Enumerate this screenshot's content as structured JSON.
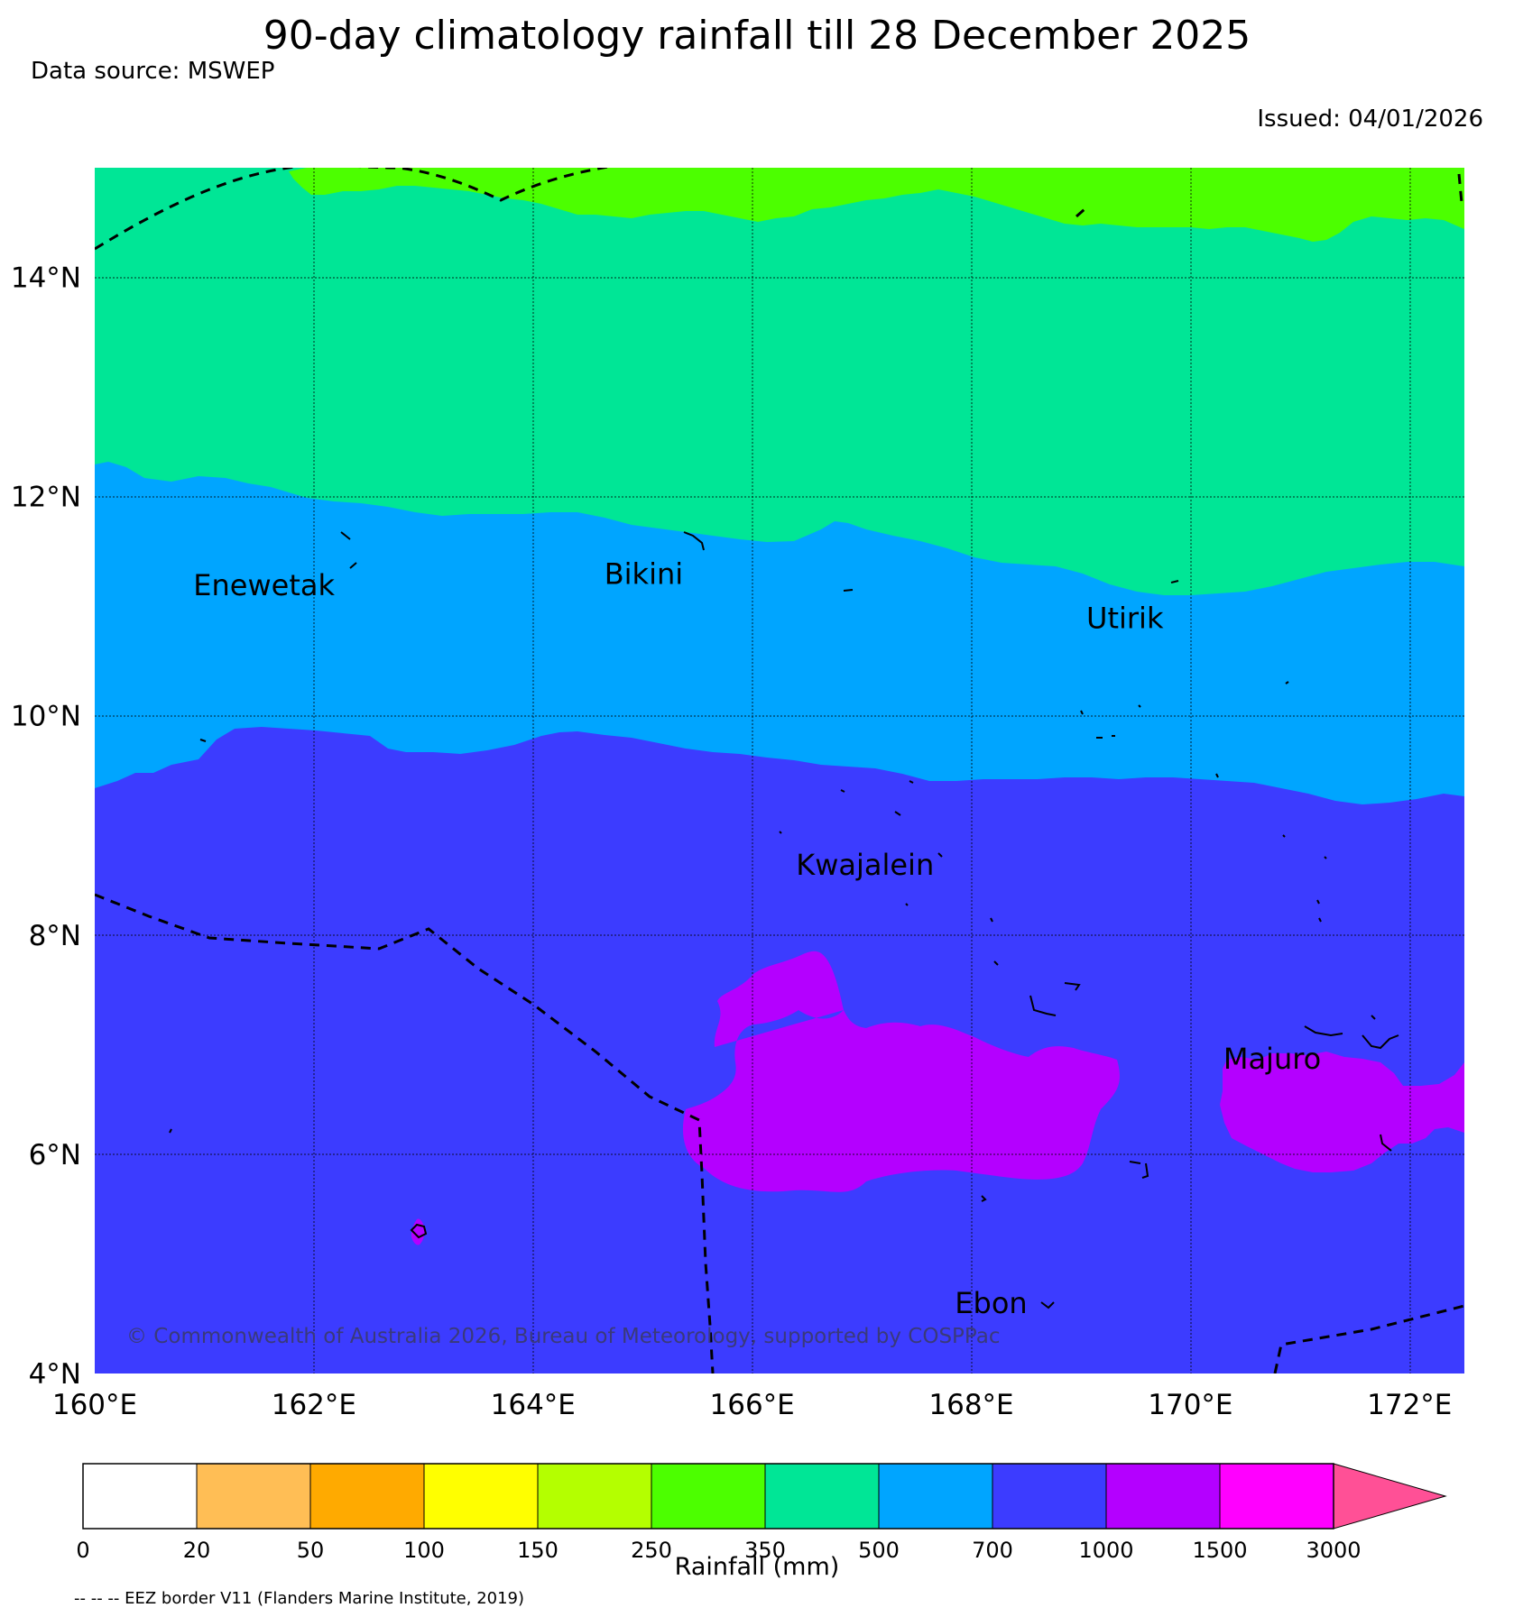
{
  "title": "90-day climatology rainfall till 28 December 2025",
  "data_source": "Data source: MSWEP",
  "issued": "Issued: 04/01/2026",
  "copyright": "© Commonwealth of Australia 2026, Bureau of Meteorology, supported by COSPPac",
  "map": {
    "lon_range": [
      160,
      172.5
    ],
    "lat_range": [
      4,
      15
    ],
    "x_ticks": [
      {
        "lon": 160,
        "label": "160°E"
      },
      {
        "lon": 162,
        "label": "162°E"
      },
      {
        "lon": 164,
        "label": "164°E"
      },
      {
        "lon": 166,
        "label": "166°E"
      },
      {
        "lon": 168,
        "label": "168°E"
      },
      {
        "lon": 170,
        "label": "170°E"
      },
      {
        "lon": 172,
        "label": "172°E"
      }
    ],
    "y_ticks": [
      {
        "lat": 4,
        "label": "4°N"
      },
      {
        "lat": 6,
        "label": "6°N"
      },
      {
        "lat": 8,
        "label": "8°N"
      },
      {
        "lat": 10,
        "label": "10°N"
      },
      {
        "lat": 12,
        "label": "12°N"
      },
      {
        "lat": 14,
        "label": "14°N"
      }
    ],
    "places": [
      {
        "name": "Enewetak",
        "lon": 160.9,
        "lat": 11.2
      },
      {
        "name": "Bikini",
        "lon": 164.65,
        "lat": 11.3
      },
      {
        "name": "Utirik",
        "lon": 169.05,
        "lat": 10.9
      },
      {
        "name": "Kwajalein",
        "lon": 166.4,
        "lat": 8.65
      },
      {
        "name": "Majuro",
        "lon": 170.3,
        "lat": 6.88
      },
      {
        "name": "Ebon",
        "lon": 167.85,
        "lat": 4.65
      }
    ],
    "band_colors": {
      "c250_350": "#4cff00",
      "c350_500": "#00e696",
      "c500_700": "#00a5ff",
      "c700_1000": "#3c3cff",
      "c1000_1500": "#b400ff"
    }
  },
  "colorbar": {
    "label": "Rainfall (mm)",
    "bins": [
      "#ffffff",
      "#ffbe55",
      "#ffaa00",
      "#ffff00",
      "#b4ff00",
      "#4cff00",
      "#00e696",
      "#00a5ff",
      "#3c3cff",
      "#b400ff",
      "#ff00ff"
    ],
    "extend_color": "#ff5096",
    "ticks": [
      "0",
      "20",
      "50",
      "100",
      "150",
      "250",
      "350",
      "500",
      "700",
      "1000",
      "1500",
      "3000"
    ]
  },
  "eez_note": "-- -- -- EEZ border V11 (Flanders Marine Institute, 2019)"
}
